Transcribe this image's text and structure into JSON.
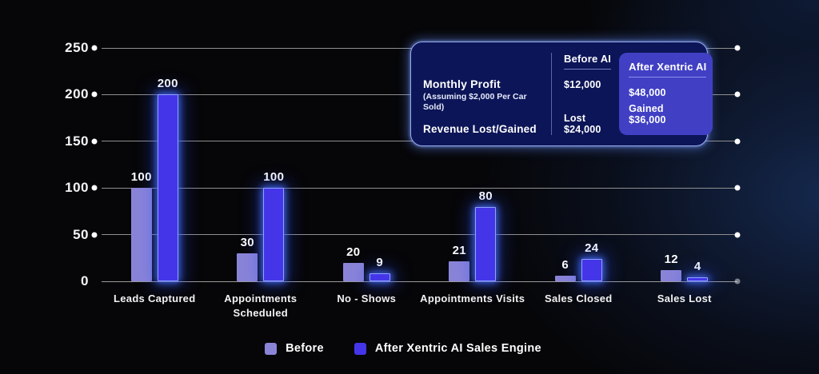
{
  "chart_data": {
    "type": "bar",
    "title": "",
    "categories": [
      "Leads Captured",
      "Appointments Scheduled",
      "No - Shows",
      "Appointments Visits",
      "Sales Closed",
      "Sales Lost"
    ],
    "series": [
      {
        "name": "Before",
        "color": "#8a84d8",
        "values": [
          100,
          30,
          20,
          21,
          6,
          12
        ]
      },
      {
        "name": "After Xentric AI Sales Engine",
        "color": "#4436e8",
        "values": [
          200,
          100,
          9,
          80,
          24,
          4
        ]
      }
    ],
    "xlabel": "",
    "ylabel": "",
    "ylim": [
      0,
      250
    ],
    "yticks": [
      0,
      50,
      100,
      150,
      200,
      250
    ],
    "grid": true,
    "legend_position": "bottom",
    "accent_glow_color": "#3f6cff"
  },
  "info_card": {
    "columns": {
      "before": "Before AI",
      "after": "After Xentric AI"
    },
    "rows": [
      {
        "label": "Monthly Profit",
        "sublabel": "(Assuming $2,000 Per Car Sold)",
        "before": "$12,000",
        "after": "$48,000"
      },
      {
        "label": "Revenue Lost/Gained",
        "sublabel": "",
        "before": "Lost $24,000",
        "after": "Gained $36,000"
      }
    ],
    "highlight_color": "#4140c4",
    "background_color": "#0c1557",
    "border_color": "#95a8ec"
  }
}
